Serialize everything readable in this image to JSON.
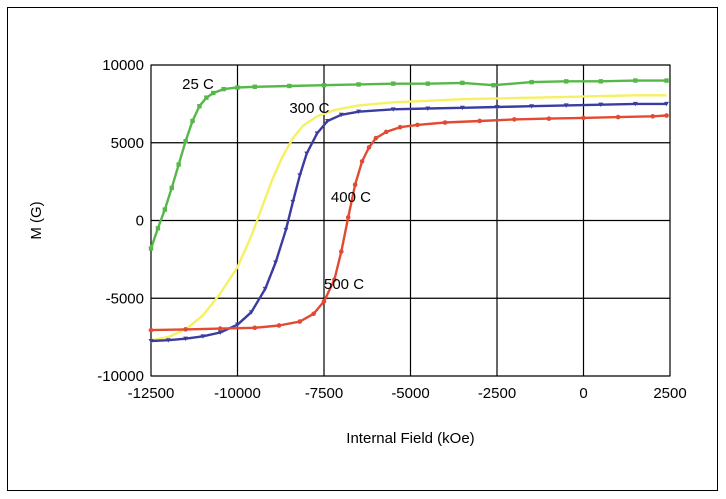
{
  "chart_data": {
    "type": "line",
    "title": "",
    "xlabel": "Internal Field (kOe)",
    "ylabel": "M (G)",
    "xlim": [
      -12500,
      2500
    ],
    "ylim": [
      -10000,
      10000
    ],
    "xticks": [
      -12500,
      -10000,
      -7500,
      -5000,
      -2500,
      0,
      2500
    ],
    "yticks": [
      -10000,
      -5000,
      0,
      5000,
      10000
    ],
    "xtick_labels": [
      "-12500",
      "-10000",
      "-7500",
      "-5000",
      "-2500",
      "0",
      "2500"
    ],
    "ytick_labels": [
      "-10000",
      "-5000",
      "0",
      "5000",
      "10000"
    ],
    "grid": true,
    "legend": "inline labels",
    "series": [
      {
        "name": "25 C",
        "color": "#55b848",
        "marker": "square",
        "label_at": [
          -11600,
          8450
        ],
        "points": [
          [
            -12500,
            -1800
          ],
          [
            -12300,
            -500
          ],
          [
            -12100,
            700
          ],
          [
            -11900,
            2100
          ],
          [
            -11700,
            3600
          ],
          [
            -11500,
            5100
          ],
          [
            -11300,
            6400
          ],
          [
            -11100,
            7350
          ],
          [
            -10900,
            7900
          ],
          [
            -10700,
            8200
          ],
          [
            -10400,
            8450
          ],
          [
            -10000,
            8550
          ],
          [
            -9500,
            8600
          ],
          [
            -8500,
            8650
          ],
          [
            -7500,
            8700
          ],
          [
            -6500,
            8750
          ],
          [
            -5500,
            8800
          ],
          [
            -4500,
            8800
          ],
          [
            -3500,
            8850
          ],
          [
            -2600,
            8700
          ],
          [
            -1500,
            8900
          ],
          [
            -500,
            8950
          ],
          [
            500,
            8950
          ],
          [
            1500,
            9000
          ],
          [
            2400,
            9000
          ]
        ]
      },
      {
        "name": "300 C",
        "color": "#f7f062",
        "marker": "none",
        "label_at": [
          -8500,
          6900
        ],
        "points": [
          [
            -12500,
            -7700
          ],
          [
            -12000,
            -7500
          ],
          [
            -11500,
            -7000
          ],
          [
            -11000,
            -6100
          ],
          [
            -10500,
            -4700
          ],
          [
            -10000,
            -3000
          ],
          [
            -9600,
            -1000
          ],
          [
            -9300,
            800
          ],
          [
            -9000,
            2600
          ],
          [
            -8700,
            4100
          ],
          [
            -8400,
            5300
          ],
          [
            -8100,
            6100
          ],
          [
            -7700,
            6700
          ],
          [
            -7200,
            7100
          ],
          [
            -6500,
            7400
          ],
          [
            -5500,
            7600
          ],
          [
            -4500,
            7700
          ],
          [
            -3500,
            7800
          ],
          [
            -2500,
            7850
          ],
          [
            -1500,
            7900
          ],
          [
            -500,
            7950
          ],
          [
            500,
            8000
          ],
          [
            1500,
            8050
          ],
          [
            2400,
            8050
          ]
        ]
      },
      {
        "name": "400 C",
        "color": "#3a3ca0",
        "marker": "triangle",
        "label_at": [
          -7300,
          1200
        ],
        "points": [
          [
            -12500,
            -7750
          ],
          [
            -12000,
            -7700
          ],
          [
            -11500,
            -7600
          ],
          [
            -11000,
            -7450
          ],
          [
            -10500,
            -7200
          ],
          [
            -10000,
            -6700
          ],
          [
            -9600,
            -5900
          ],
          [
            -9200,
            -4400
          ],
          [
            -8900,
            -2700
          ],
          [
            -8600,
            -600
          ],
          [
            -8400,
            1200
          ],
          [
            -8200,
            2900
          ],
          [
            -8000,
            4300
          ],
          [
            -7700,
            5600
          ],
          [
            -7400,
            6400
          ],
          [
            -7000,
            6800
          ],
          [
            -6500,
            7000
          ],
          [
            -5500,
            7150
          ],
          [
            -4500,
            7200
          ],
          [
            -3500,
            7250
          ],
          [
            -2500,
            7300
          ],
          [
            -1500,
            7350
          ],
          [
            -500,
            7400
          ],
          [
            500,
            7450
          ],
          [
            1500,
            7500
          ],
          [
            2400,
            7500
          ]
        ]
      },
      {
        "name": "500 C",
        "color": "#e24a33",
        "marker": "circle",
        "label_at": [
          -7500,
          -4400
        ],
        "points": [
          [
            -12500,
            -7050
          ],
          [
            -11500,
            -7000
          ],
          [
            -10500,
            -6950
          ],
          [
            -9500,
            -6900
          ],
          [
            -8800,
            -6750
          ],
          [
            -8200,
            -6500
          ],
          [
            -7800,
            -6000
          ],
          [
            -7500,
            -5200
          ],
          [
            -7200,
            -3800
          ],
          [
            -7000,
            -2000
          ],
          [
            -6800,
            200
          ],
          [
            -6600,
            2300
          ],
          [
            -6400,
            3800
          ],
          [
            -6200,
            4700
          ],
          [
            -6000,
            5300
          ],
          [
            -5700,
            5700
          ],
          [
            -5300,
            6000
          ],
          [
            -4800,
            6150
          ],
          [
            -4000,
            6300
          ],
          [
            -3000,
            6400
          ],
          [
            -2000,
            6500
          ],
          [
            -1000,
            6550
          ],
          [
            0,
            6600
          ],
          [
            1000,
            6650
          ],
          [
            2000,
            6700
          ],
          [
            2400,
            6750
          ]
        ]
      }
    ]
  }
}
